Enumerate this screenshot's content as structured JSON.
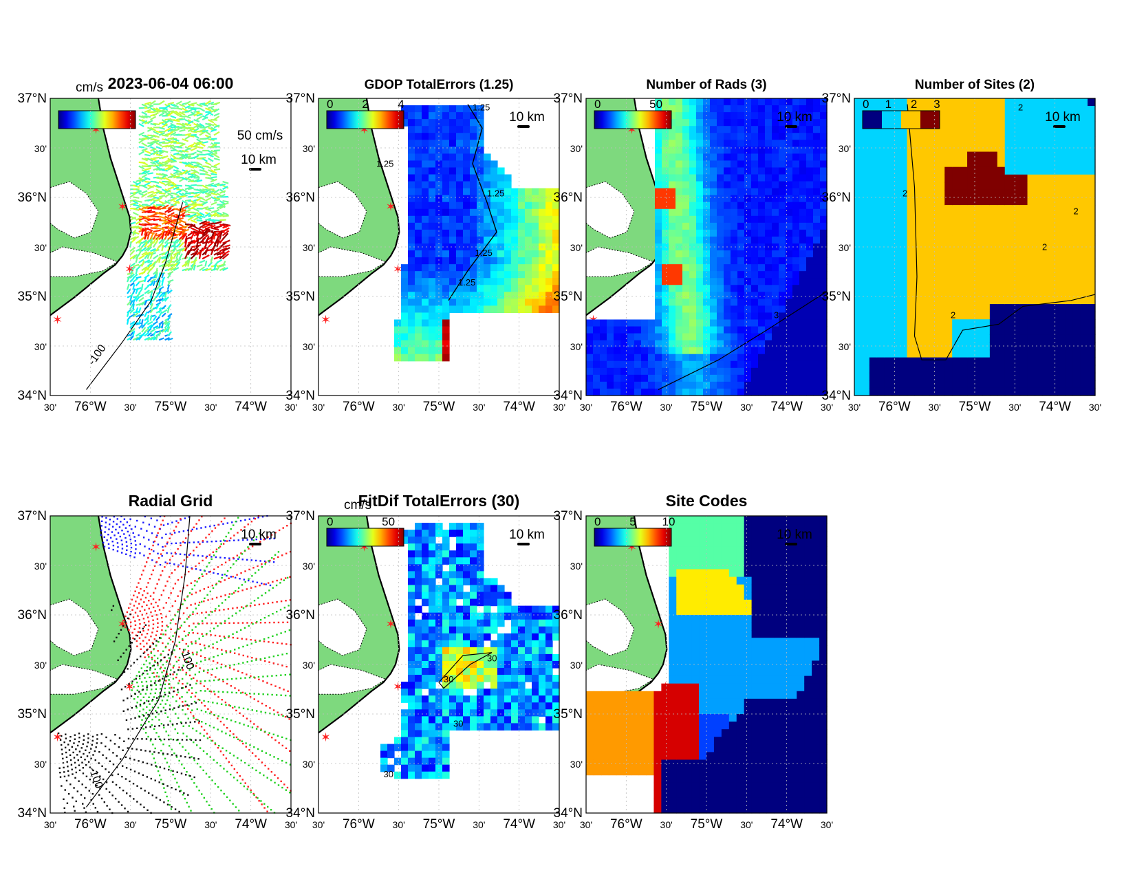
{
  "figure": {
    "lat_ticks": [
      "37°N",
      "30'",
      "36°N",
      "30'",
      "35°N",
      "30'",
      "34°N"
    ],
    "lon_ticks": [
      "30'",
      "76°W",
      "30'",
      "75°W",
      "30'",
      "74°W",
      "30'"
    ],
    "scale_label": "10 km",
    "colors": {
      "land": "#7ed97e",
      "coast": "#000000",
      "site_marker": "#ff2020",
      "ocean": "#ffffff"
    }
  },
  "panels": [
    {
      "id": "velocity",
      "title": "2023-06-04 06:00",
      "colorbar_unit": "cm/s",
      "colorbar_ticks": [],
      "reference_vector_label": "50 cm/s",
      "contour_labels": [
        "-100"
      ]
    },
    {
      "id": "gdop",
      "title": "GDOP TotalErrors (1.25)",
      "colorbar_unit": "",
      "colorbar_ticks": [
        "0",
        "2",
        "4"
      ],
      "contour_labels": [
        "1.25",
        "1.25",
        "1.25",
        "1.25",
        "1.25"
      ]
    },
    {
      "id": "rads",
      "title": "Number of Rads (3)",
      "colorbar_unit": "",
      "colorbar_ticks": [
        "0",
        "50"
      ],
      "contour_labels": [
        "3"
      ]
    },
    {
      "id": "sites",
      "title": "Number of Sites (2)",
      "colorbar_unit": "",
      "colorbar_ticks": [
        "0",
        "1",
        "2",
        "3"
      ],
      "contour_labels": [
        "2",
        "2",
        "2",
        "2",
        "2"
      ]
    },
    {
      "id": "grid",
      "title": "Radial Grid",
      "colorbar_unit": "",
      "colorbar_ticks": [],
      "contour_labels": [
        "-100",
        "-100"
      ]
    },
    {
      "id": "fitdif",
      "title": "FitDif TotalErrors (30)",
      "colorbar_unit": "cm/s",
      "colorbar_ticks": [
        "0",
        "50"
      ],
      "contour_labels": [
        "30",
        "30",
        "30",
        "30"
      ]
    },
    {
      "id": "codes",
      "title": "Site Codes",
      "colorbar_unit": "",
      "colorbar_ticks": [
        "0",
        "5",
        "10"
      ],
      "contour_labels": []
    }
  ]
}
